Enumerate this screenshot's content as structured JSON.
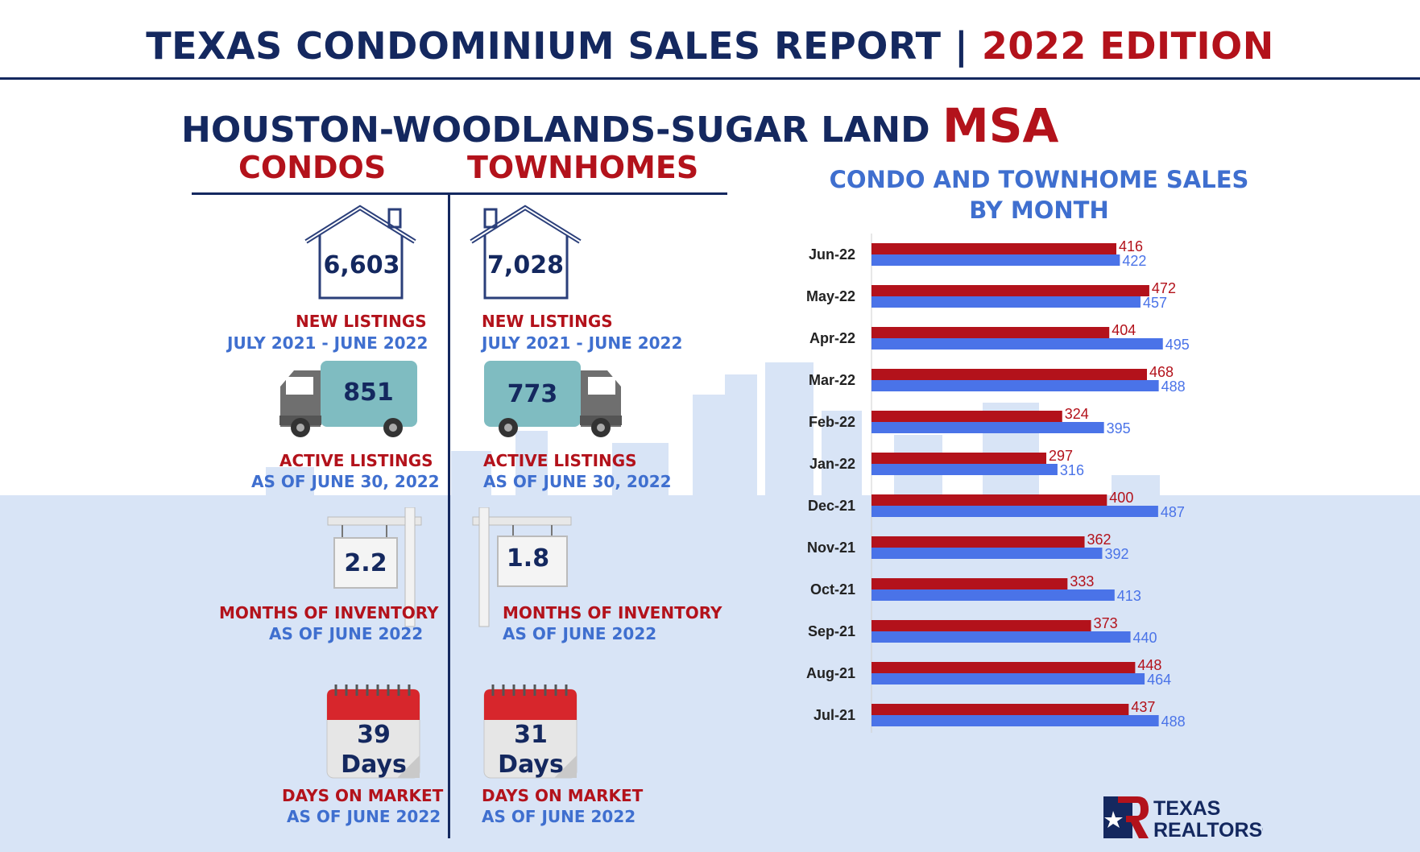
{
  "header": {
    "title_part1": "TEXAS CONDOMINIUM SALES REPORT |",
    "title_part2": "2022 EDITION"
  },
  "region": {
    "name": "HOUSTON-WOODLANDS-SUGAR LAND",
    "suffix": "MSA"
  },
  "columns": {
    "condos": "CONDOS",
    "townhomes": "TOWNHOMES"
  },
  "condos": {
    "new_listings": "6,603",
    "new_listings_label": "NEW LISTINGS",
    "new_listings_period": "JULY 2021 - JUNE 2022",
    "active_listings": "851",
    "active_listings_label": "ACTIVE LISTINGS",
    "active_listings_period": "AS OF JUNE 30, 2022",
    "months_inventory": "2.2",
    "months_inventory_label": "MONTHS OF INVENTORY",
    "months_inventory_period": "AS OF JUNE 2022",
    "days_on_market": "39",
    "days_word": "Days",
    "days_on_market_label": "DAYS ON MARKET",
    "days_on_market_period": "AS OF JUNE 2022"
  },
  "townhomes": {
    "new_listings": "7,028",
    "new_listings_label": "NEW LISTINGS",
    "new_listings_period": "JULY 2021 - JUNE 2022",
    "active_listings": "773",
    "active_listings_label": "ACTIVE LISTINGS",
    "active_listings_period": "AS OF JUNE 30, 2022",
    "months_inventory": "1.8",
    "months_inventory_label": "MONTHS OF INVENTORY",
    "months_inventory_period": "AS OF JUNE 2022",
    "days_on_market": "31",
    "days_word": "Days",
    "days_on_market_label": "DAYS ON MARKET",
    "days_on_market_period": "AS OF JUNE 2022"
  },
  "chart_data": {
    "type": "bar",
    "orientation": "horizontal",
    "title": "CONDO AND TOWNHOME SALES BY MONTH",
    "categories": [
      "Jun-22",
      "May-22",
      "Apr-22",
      "Mar-22",
      "Feb-22",
      "Jan-22",
      "Dec-21",
      "Nov-21",
      "Oct-21",
      "Sep-21",
      "Aug-21",
      "Jul-21"
    ],
    "series": [
      {
        "name": "Condos",
        "color": "#b3121b",
        "values": [
          416,
          472,
          404,
          468,
          324,
          297,
          400,
          362,
          333,
          373,
          448,
          437
        ]
      },
      {
        "name": "Townhomes",
        "color": "#4a73e8",
        "values": [
          422,
          457,
          495,
          488,
          395,
          316,
          487,
          392,
          413,
          440,
          464,
          488
        ]
      }
    ],
    "xlim": [
      0,
      520
    ],
    "grid": false,
    "legend": "bottom"
  },
  "logo": {
    "line1": "TEXAS",
    "line2": "REALTORS®"
  },
  "colors": {
    "navy": "#14285f",
    "red": "#b3121b",
    "blue": "#3f6fcf",
    "townhome_bar": "#4a73e8",
    "background_band": "#d8e4f6"
  }
}
